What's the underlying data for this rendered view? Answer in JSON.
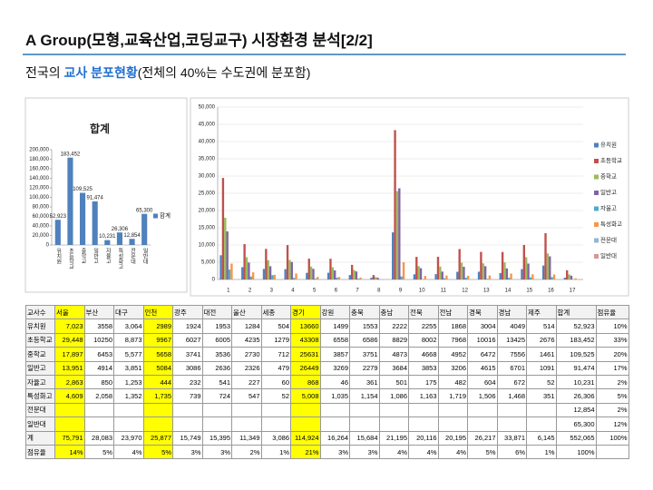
{
  "title": "A Group(모형,교육산업,코딩교구) 시장환경 분석[2/2]",
  "subtitle": {
    "prefix": "전국의 ",
    "highlight": "교사 분포현황",
    "suffix": "(전체의 40%는 수도권에 분포함)"
  },
  "chart_data": [
    {
      "type": "bar",
      "title": "합계",
      "categories": [
        "유치원",
        "초등학교",
        "중학교",
        "일반고",
        "자율고",
        "특성화고",
        "전문대",
        "일반대"
      ],
      "series": [
        {
          "name": "합계",
          "color": "#4f81bd",
          "values": [
            52923,
            183452,
            109525,
            91474,
            10231,
            26306,
            12854,
            65300
          ],
          "value_labels": [
            "52,923",
            "183,452",
            "109,525",
            "91,474",
            "10,231",
            "26,306",
            "12,854",
            "65,300"
          ]
        }
      ],
      "ylim": [
        0,
        200000
      ],
      "yticks": [
        0,
        {
          "value": 20000,
          "label": "20,000"
        },
        {
          "value": 40000,
          "label": "40,000"
        },
        {
          "value": 60000,
          "label": "60,000"
        },
        {
          "value": 80000,
          "label": "80,000"
        },
        {
          "value": 100000,
          "label": "100,000"
        },
        {
          "value": 120000,
          "label": "120,000"
        },
        {
          "value": 140000,
          "label": "140,000"
        },
        {
          "value": 160000,
          "label": "160,000"
        },
        {
          "value": 180000,
          "label": "180,000"
        },
        {
          "value": 200000,
          "label": "200,000"
        }
      ],
      "grid": false,
      "legend": "right"
    },
    {
      "type": "bar",
      "categories": [
        "1",
        "2",
        "3",
        "4",
        "5",
        "6",
        "7",
        "8",
        "9",
        "10",
        "11",
        "12",
        "13",
        "14",
        "15",
        "16",
        "17"
      ],
      "series": [
        {
          "name": "유치원",
          "color": "#4f81bd",
          "values": [
            7023,
            3558,
            3064,
            2989,
            1924,
            1953,
            1284,
            504,
            13660,
            1499,
            1553,
            2222,
            2255,
            1868,
            3004,
            4049,
            514
          ]
        },
        {
          "name": "초등학교",
          "color": "#c0504d",
          "values": [
            29448,
            10250,
            8873,
            9967,
            6027,
            6005,
            4235,
            1279,
            43308,
            6558,
            6586,
            8829,
            8002,
            7968,
            10016,
            13425,
            2676
          ]
        },
        {
          "name": "중학교",
          "color": "#9bbb59",
          "values": [
            17897,
            6453,
            5577,
            5658,
            3741,
            3536,
            2730,
            712,
            25631,
            3857,
            3751,
            4873,
            4668,
            4952,
            6472,
            7556,
            1461
          ]
        },
        {
          "name": "일반고",
          "color": "#8064a2",
          "values": [
            13951,
            4914,
            3851,
            5084,
            3086,
            2636,
            2326,
            479,
            26449,
            3269,
            2279,
            3684,
            3853,
            3206,
            4615,
            6701,
            1091
          ]
        },
        {
          "name": "자율고",
          "color": "#4bacc6",
          "values": [
            2863,
            850,
            1253,
            444,
            232,
            541,
            227,
            60,
            868,
            46,
            361,
            501,
            175,
            482,
            604,
            672,
            52
          ]
        },
        {
          "name": "특성화고",
          "color": "#f79646",
          "values": [
            4609,
            2058,
            1352,
            1735,
            739,
            724,
            547,
            52,
            5008,
            1035,
            1154,
            1086,
            1163,
            1719,
            1506,
            1468,
            351
          ]
        },
        {
          "name": "전문대",
          "color": "#95b3d7",
          "values": [
            null,
            null,
            null,
            null,
            null,
            null,
            null,
            null,
            null,
            null,
            null,
            null,
            null,
            null,
            null,
            null,
            null
          ]
        },
        {
          "name": "일반대",
          "color": "#d99694",
          "values": [
            null,
            null,
            null,
            null,
            null,
            null,
            null,
            null,
            null,
            null,
            null,
            null,
            null,
            null,
            null,
            null,
            null
          ]
        }
      ],
      "ylim": [
        0,
        50000
      ],
      "yticks": [
        0,
        {
          "value": 5000,
          "label": "5,000"
        },
        {
          "value": 10000,
          "label": "10,000"
        },
        {
          "value": 15000,
          "label": "15,000"
        },
        {
          "value": 20000,
          "label": "20,000"
        },
        {
          "value": 25000,
          "label": "25,000"
        },
        {
          "value": 30000,
          "label": "30,000"
        },
        {
          "value": 35000,
          "label": "35,000"
        },
        {
          "value": 40000,
          "label": "40,000"
        },
        {
          "value": 45000,
          "label": "45,000"
        },
        {
          "value": 50000,
          "label": "50,000"
        }
      ],
      "grid": true,
      "legend": "right"
    }
  ],
  "table": {
    "header": [
      "교사수",
      "서울",
      "부산",
      "대구",
      "인천",
      "광주",
      "대전",
      "울산",
      "세종",
      "경기",
      "강원",
      "충북",
      "충남",
      "전북",
      "전남",
      "경북",
      "경남",
      "제주",
      "합계",
      "점유율"
    ],
    "rows": [
      {
        "label": "유치원",
        "cells": [
          "7,023",
          "3558",
          "3,064",
          "2989",
          "1924",
          "1953",
          "1284",
          "504",
          "13660",
          "1499",
          "1553",
          "2222",
          "2255",
          "1868",
          "3004",
          "4049",
          "514",
          "52,923",
          "10%"
        ]
      },
      {
        "label": "초등학교",
        "cells": [
          "29,448",
          "10250",
          "8,873",
          "9967",
          "6027",
          "6005",
          "4235",
          "1279",
          "43308",
          "6558",
          "6586",
          "8829",
          "8002",
          "7968",
          "10016",
          "13425",
          "2676",
          "183,452",
          "33%"
        ]
      },
      {
        "label": "중학교",
        "cells": [
          "17,897",
          "6453",
          "5,577",
          "5658",
          "3741",
          "3536",
          "2730",
          "712",
          "25631",
          "3857",
          "3751",
          "4873",
          "4668",
          "4952",
          "6472",
          "7556",
          "1461",
          "109,525",
          "20%"
        ]
      },
      {
        "label": "일반고",
        "cells": [
          "13,951",
          "4914",
          "3,851",
          "5084",
          "3086",
          "2636",
          "2326",
          "479",
          "26449",
          "3269",
          "2279",
          "3684",
          "3853",
          "3206",
          "4615",
          "6701",
          "1091",
          "91,474",
          "17%"
        ]
      },
      {
        "label": "자율고",
        "cells": [
          "2,863",
          "850",
          "1,253",
          "444",
          "232",
          "541",
          "227",
          "60",
          "868",
          "46",
          "361",
          "501",
          "175",
          "482",
          "604",
          "672",
          "52",
          "10,231",
          "2%"
        ]
      },
      {
        "label": "특성화고",
        "cells": [
          "4,609",
          "2,058",
          "1,352",
          "1,735",
          "739",
          "724",
          "547",
          "52",
          "5,008",
          "1,035",
          "1,154",
          "1,086",
          "1,163",
          "1,719",
          "1,506",
          "1,468",
          "351",
          "26,306",
          "5%"
        ]
      },
      {
        "label": "전문대",
        "cells": [
          null,
          null,
          null,
          null,
          null,
          null,
          null,
          null,
          null,
          null,
          null,
          null,
          null,
          null,
          null,
          null,
          null,
          "12,854",
          "2%"
        ]
      },
      {
        "label": "일반대",
        "cells": [
          null,
          null,
          null,
          null,
          null,
          null,
          null,
          null,
          null,
          null,
          null,
          null,
          null,
          null,
          null,
          null,
          null,
          "65,300",
          "12%"
        ]
      },
      {
        "label": "계",
        "cells": [
          "75,791",
          "28,083",
          "23,970",
          "25,877",
          "15,749",
          "15,395",
          "11,349",
          "3,086",
          "114,924",
          "16,264",
          "15,684",
          "21,195",
          "20,116",
          "20,195",
          "26,217",
          "33,871",
          "6,145",
          "552,065",
          "100%"
        ]
      },
      {
        "label": "점유율",
        "cells": [
          "14%",
          "5%",
          "4%",
          "5%",
          "3%",
          "3%",
          "2%",
          "1%",
          "21%",
          "3%",
          "3%",
          "4%",
          "4%",
          "4%",
          "5%",
          "6%",
          "1%",
          "100%",
          null
        ]
      }
    ]
  }
}
